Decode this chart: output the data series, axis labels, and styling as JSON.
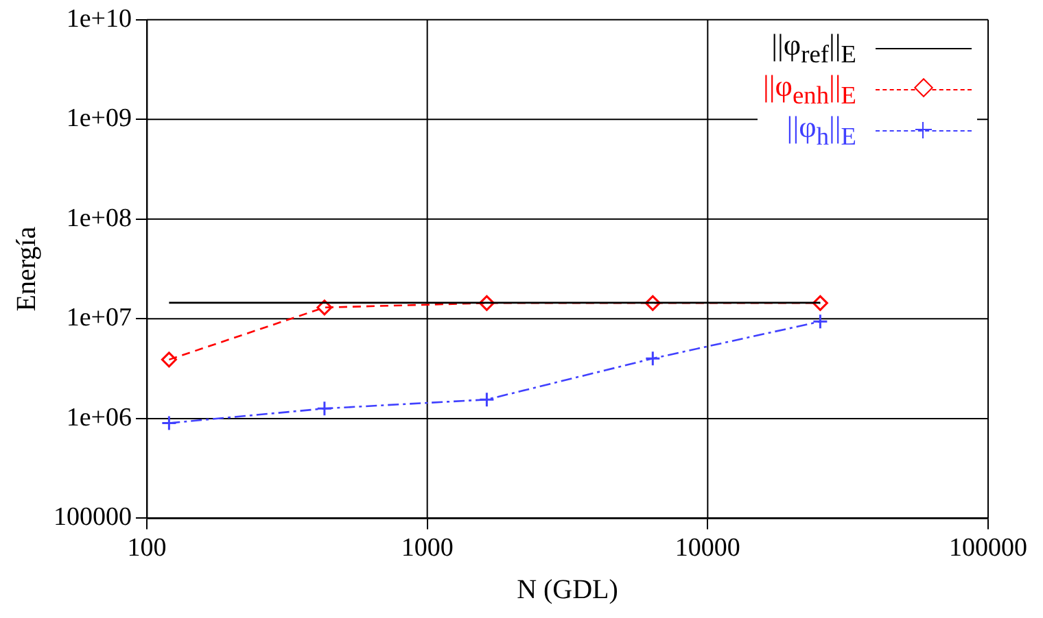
{
  "chart_data": {
    "type": "line",
    "xlabel": "N (GDL)",
    "ylabel": "Energía",
    "log": "xy",
    "xlim": [
      100,
      100000
    ],
    "ylim": [
      100000,
      10000000000
    ],
    "xticks": [
      100,
      1000,
      10000,
      100000
    ],
    "yticks": [
      100000,
      {
        "value": 1000000,
        "label": "1e+06"
      },
      {
        "value": 10000000,
        "label": "1e+07"
      },
      {
        "value": 100000000,
        "label": "1e+08"
      },
      {
        "value": 1000000000,
        "label": "1e+09"
      },
      {
        "value": 10000000000,
        "label": "1e+10"
      }
    ],
    "grid": true,
    "legend": "top right",
    "series": [
      {
        "name": "||φ$_{ref}$||$_{E}$",
        "color": "#000000",
        "x": [
          120,
          25200
        ],
        "values": [
          14500000,
          14500000
        ],
        "marker": "none",
        "line_style": "solid"
      },
      {
        "name": "||φ$_{enh}$||$_{E}$",
        "color": "#ff0000",
        "x": [
          120,
          430,
          1630,
          6370,
          25200
        ],
        "values": [
          3900000,
          13000000,
          14400000,
          14400000,
          14400000
        ],
        "marker": "diamond",
        "line_style": "dashed"
      },
      {
        "name": "||φ$_{h}$||$_{E}$",
        "color": "#4040ff",
        "x": [
          120,
          430,
          1630,
          6370,
          25200
        ],
        "values": [
          900000,
          1260000,
          1550000,
          4000000,
          9400000
        ],
        "marker": "cross",
        "line_style": "dashdot"
      }
    ]
  }
}
